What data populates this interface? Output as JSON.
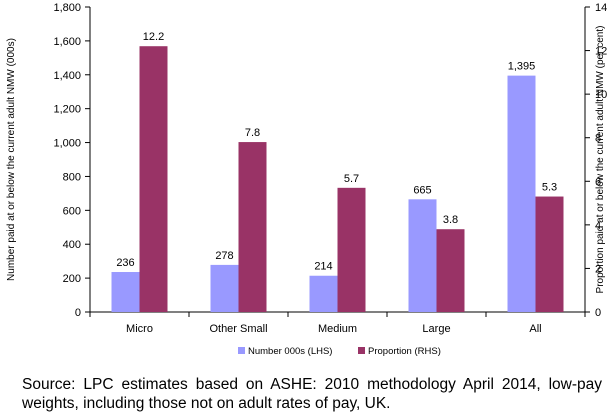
{
  "chart_data": {
    "type": "bar",
    "categories": [
      "Micro",
      "Other Small",
      "Medium",
      "Large",
      "All"
    ],
    "series": [
      {
        "name": "Number 000s (LHS)",
        "axis": "left",
        "color": "#9999ff",
        "values": [
          236,
          278,
          214,
          665,
          1395
        ],
        "labels": [
          "236",
          "278",
          "214",
          "665",
          "1,395"
        ]
      },
      {
        "name": "Proportion (RHS)",
        "axis": "right",
        "color": "#993366",
        "values": [
          12.2,
          7.8,
          5.7,
          3.8,
          5.3
        ],
        "labels": [
          "12.2",
          "7.8",
          "5.7",
          "3.8",
          "5.3"
        ]
      }
    ],
    "ylabel_left": "Number paid at or below the current adult NMW (000s)",
    "ylabel_right": "Proportion  paid at or below the current adult NMW (per cent)",
    "ylim_left": [
      0,
      1800
    ],
    "ylim_right": [
      0,
      14
    ],
    "yticks_left": [
      "0",
      "200",
      "400",
      "600",
      "800",
      "1,000",
      "1,200",
      "1,400",
      "1,600",
      "1,800"
    ],
    "yticks_right": [
      "0",
      "2",
      "4",
      "6",
      "8",
      "10",
      "12",
      "14"
    ],
    "legend_position": "bottom",
    "grid": false
  },
  "source_note": "Source:  LPC estimates based on ASHE: 2010 methodology April 2014, low-pay weights, including those not on adult rates of pay, UK."
}
